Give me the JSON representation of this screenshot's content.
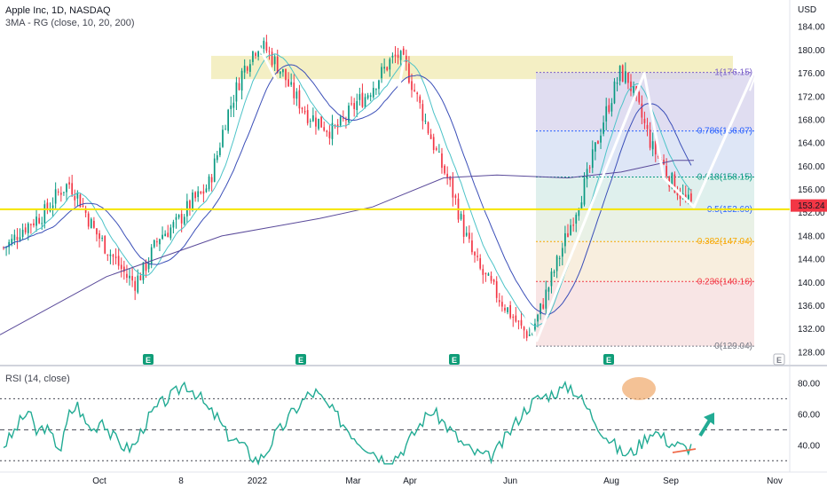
{
  "header": {
    "title": "Apple Inc, 1D, NASDAQ",
    "indicator": "3MA - RG (close, 10, 20, 200)"
  },
  "price_axis": {
    "currency": "USD",
    "ticks": [
      "184.00",
      "180.00",
      "176.00",
      "172.00",
      "168.00",
      "164.00",
      "160.00",
      "156.00",
      "152.00",
      "148.00",
      "144.00",
      "140.00",
      "136.00",
      "132.00",
      "128.00"
    ],
    "current_price": "153.24",
    "current_color": "#f23645"
  },
  "fib": {
    "levels": [
      {
        "label": "1(176.15)",
        "value": 176.15,
        "color": "#7b61c9"
      },
      {
        "label": "0.786(166.07)",
        "value": 166.07,
        "color": "#2962ff"
      },
      {
        "label": "0.618(158.15)",
        "value": 158.15,
        "color": "#089981"
      },
      {
        "label": "0.5(152.60)",
        "value": 152.6,
        "color": "#2962ff"
      },
      {
        "label": "0.382(147.04)",
        "value": 147.04,
        "color": "#f7a600"
      },
      {
        "label": "0.236(140.16)",
        "value": 140.16,
        "color": "#f23645"
      },
      {
        "label": "0(129.04)",
        "value": 129.04,
        "color": "#787b86"
      }
    ]
  },
  "support_line": {
    "value": 152.6,
    "color": "#f5e400"
  },
  "resistance_zone": {
    "from": 175.0,
    "to": 179.0,
    "color": "#f0eab0"
  },
  "earnings": {
    "label": "E",
    "count": 5
  },
  "rsi": {
    "title": "RSI (14, close)",
    "ticks": [
      "80.00",
      "60.00",
      "40.00"
    ],
    "upper": 70,
    "mid": 50,
    "lower": 30
  },
  "x_axis": {
    "labels": [
      "Oct",
      "8",
      "2022",
      "Mar",
      "Apr",
      "Jun",
      "Aug",
      "Sep",
      "Nov"
    ]
  },
  "chart_data": {
    "type": "line",
    "series": [
      {
        "values": [
          146,
          147,
          149,
          150,
          151,
          152,
          154,
          156,
          157,
          155,
          152,
          149,
          147,
          145,
          143,
          141,
          140,
          142,
          145,
          148,
          149,
          150,
          152,
          154,
          155,
          157,
          162,
          168,
          172,
          176,
          179,
          181,
          180,
          178,
          176,
          173,
          171,
          169,
          168,
          167,
          166,
          167,
          169,
          171,
          172,
          174,
          176,
          178,
          179,
          177,
          173,
          169,
          165,
          161,
          158,
          154,
          149,
          145,
          142,
          140,
          138,
          136,
          134,
          132,
          131,
          134,
          138,
          142,
          146,
          150,
          154,
          158,
          163,
          168,
          172,
          176,
          175,
          171,
          167,
          163,
          161,
          158,
          156,
          154,
          153
        ]
      },
      {
        "values": [
          40,
          46,
          55,
          62,
          48,
          52,
          44,
          38,
          60,
          66,
          54,
          50,
          58,
          47,
          42,
          38,
          40,
          52,
          60,
          66,
          70,
          74,
          80,
          76,
          70,
          62,
          58,
          48,
          44,
          40,
          34,
          30,
          36,
          46,
          52,
          60,
          66,
          72,
          74,
          68,
          62,
          56,
          50,
          44,
          40,
          36,
          32,
          30,
          34,
          40,
          48,
          56,
          62,
          58,
          52,
          46,
          40,
          36,
          34,
          32,
          36,
          44,
          52,
          60,
          66,
          70,
          72,
          74,
          76,
          78,
          72,
          64,
          56,
          48,
          42,
          36,
          34,
          38,
          44,
          50,
          46,
          42,
          40,
          38,
          40
        ]
      }
    ]
  }
}
